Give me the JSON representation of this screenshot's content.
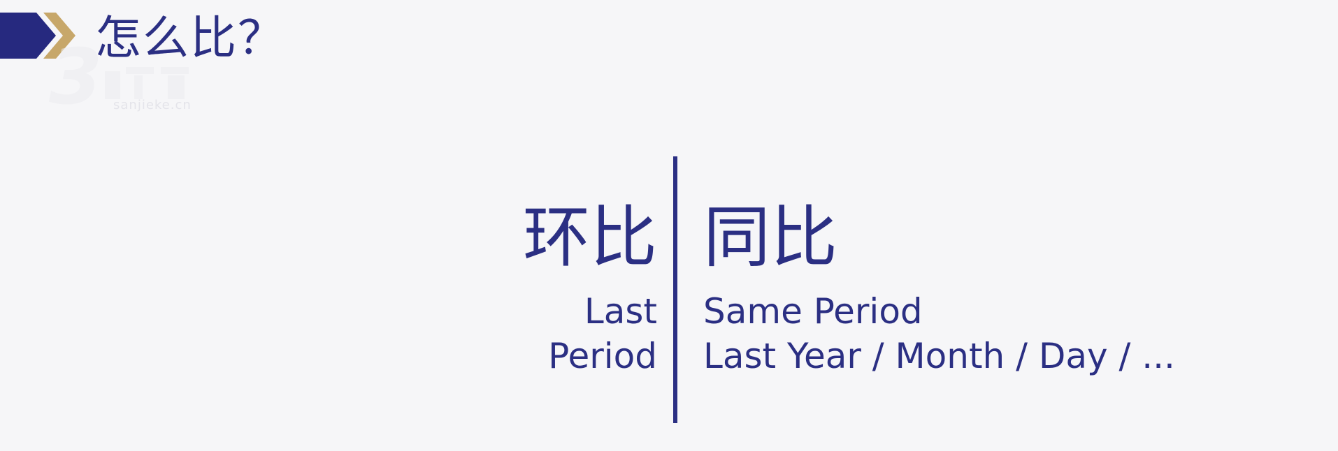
{
  "header": {
    "title": "怎么比？",
    "chevron_colors": [
      "#26297f",
      "#c7a76a"
    ]
  },
  "watermark": {
    "text": "sanjieke.cn"
  },
  "comparison": {
    "left": {
      "term": "环比",
      "lines": [
        "Last",
        "Period"
      ]
    },
    "right": {
      "term": "同比",
      "lines": [
        "Same Period",
        "Last Year / Month / Day / ..."
      ]
    }
  },
  "colors": {
    "text": "#2b2f83",
    "background": "#f6f6f8",
    "divider": "#2b2f83"
  }
}
